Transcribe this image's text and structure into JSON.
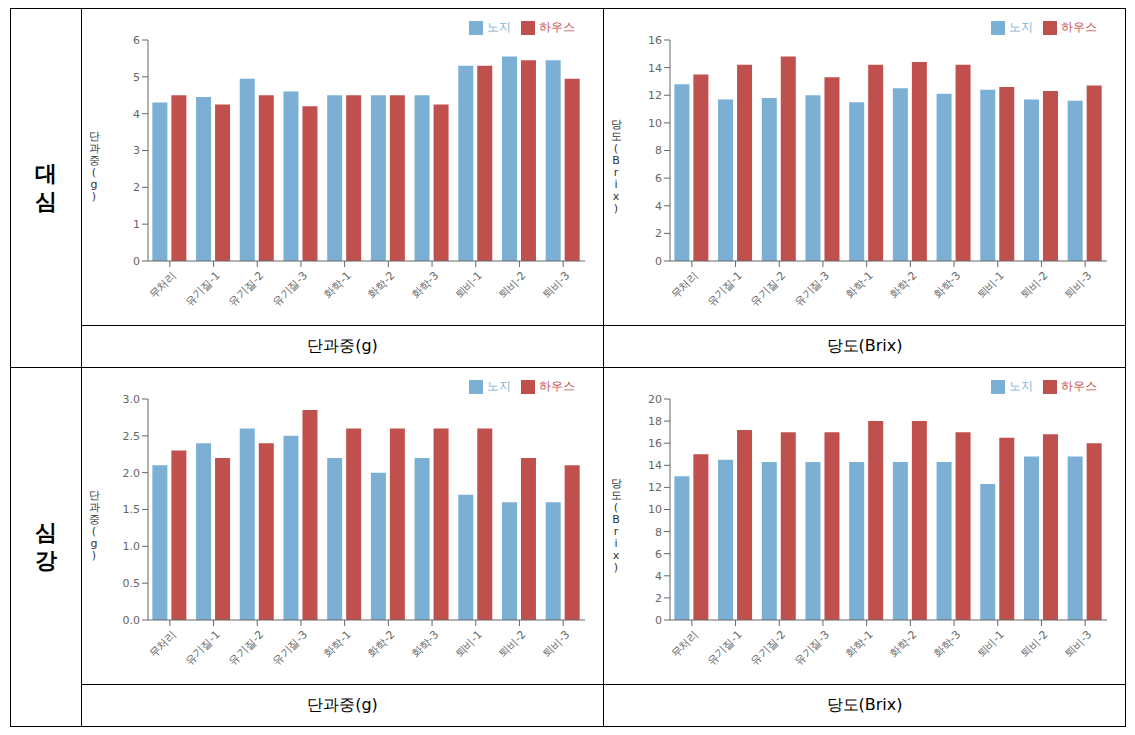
{
  "chart_data": [
    {
      "type": "bar",
      "categories": [
        "무처리",
        "유기질-1",
        "유기질-2",
        "유기질-3",
        "화학-1",
        "화학-2",
        "화학-3",
        "퇴비-1",
        "퇴비-2",
        "퇴비-3"
      ],
      "series": [
        {
          "name": "노지",
          "color": "#7bafd4",
          "values": [
            4.3,
            4.45,
            4.95,
            4.6,
            4.5,
            4.5,
            4.5,
            5.3,
            5.55,
            5.45
          ]
        },
        {
          "name": "하우스",
          "color": "#c0504d",
          "values": [
            4.5,
            4.25,
            4.5,
            4.2,
            4.5,
            4.5,
            4.25,
            5.3,
            5.45,
            4.95
          ]
        }
      ],
      "ylim": [
        0,
        6
      ],
      "yticks": [
        0,
        1,
        2,
        3,
        4,
        5,
        6
      ],
      "ylabel": "단\n과\n중\n(\ng\n)",
      "xlabel": "단과중(g)",
      "legend": "upper right",
      "grid": false,
      "annotations": [
        "대\n심"
      ]
    },
    {
      "type": "bar",
      "categories": [
        "무처리",
        "유기질-1",
        "유기질-2",
        "유기질-3",
        "화학-1",
        "화학-2",
        "화학-3",
        "퇴비-1",
        "퇴비-2",
        "퇴비-3"
      ],
      "series": [
        {
          "name": "노지",
          "color": "#7bafd4",
          "values": [
            12.8,
            11.7,
            11.8,
            12.0,
            11.5,
            12.5,
            12.1,
            12.4,
            11.7,
            11.6
          ]
        },
        {
          "name": "하우스",
          "color": "#c0504d",
          "values": [
            13.5,
            14.2,
            14.8,
            13.3,
            14.2,
            14.4,
            14.2,
            12.6,
            12.3,
            12.7
          ]
        }
      ],
      "ylim": [
        0,
        16
      ],
      "yticks": [
        0,
        2,
        4,
        6,
        8,
        10,
        12,
        14,
        16
      ],
      "ylabel": "당\n도\n(\nB\nr\ni\nx\n)",
      "xlabel": "당도(Brix)",
      "legend": "upper right",
      "grid": false
    },
    {
      "type": "bar",
      "categories": [
        "무처리",
        "유기질-1",
        "유기질-2",
        "유기질-3",
        "화학-1",
        "화학-2",
        "화학-3",
        "퇴비-1",
        "퇴비-2",
        "퇴비-3"
      ],
      "series": [
        {
          "name": "노지",
          "color": "#7bafd4",
          "values": [
            2.1,
            2.4,
            2.6,
            2.5,
            2.2,
            2.0,
            2.2,
            1.7,
            1.6,
            1.6
          ]
        },
        {
          "name": "하우스",
          "color": "#c0504d",
          "values": [
            2.3,
            2.2,
            2.4,
            2.85,
            2.6,
            2.6,
            2.6,
            2.6,
            2.2,
            2.1
          ]
        }
      ],
      "ylim": [
        0,
        3
      ],
      "yticks": [
        {
          "value": 0,
          "label": "0.0"
        },
        0.5,
        {
          "value": 1,
          "label": "1.0"
        },
        1.5,
        {
          "value": 2,
          "label": "2.0"
        },
        2.5,
        {
          "value": 3,
          "label": "3.0"
        }
      ],
      "ylabel": "단\n과\n중\n(\ng\n)",
      "xlabel": "단과중(g)",
      "legend": "upper right",
      "grid": false,
      "annotations": [
        "심\n강"
      ]
    },
    {
      "type": "bar",
      "categories": [
        "무처리",
        "유기질-1",
        "유기질-2",
        "유기질-3",
        "화학-1",
        "화학-2",
        "화학-3",
        "퇴비-1",
        "퇴비-2",
        "퇴비-3"
      ],
      "series": [
        {
          "name": "노지",
          "color": "#7bafd4",
          "values": [
            13.0,
            14.5,
            14.3,
            14.3,
            14.3,
            14.3,
            14.3,
            12.3,
            14.8,
            14.8
          ]
        },
        {
          "name": "하우스",
          "color": "#c0504d",
          "values": [
            15.0,
            17.2,
            17.0,
            17.0,
            18.0,
            18.0,
            17.0,
            16.5,
            16.8,
            16.0
          ]
        }
      ],
      "ylim": [
        0,
        20
      ],
      "yticks": [
        0,
        2,
        4,
        6,
        8,
        10,
        12,
        14,
        16,
        18,
        20
      ],
      "ylabel": "당\n도\n(\nB\nr\ni\nx\n)",
      "xlabel": "당도(Brix)",
      "legend": "upper right",
      "grid": false
    }
  ]
}
